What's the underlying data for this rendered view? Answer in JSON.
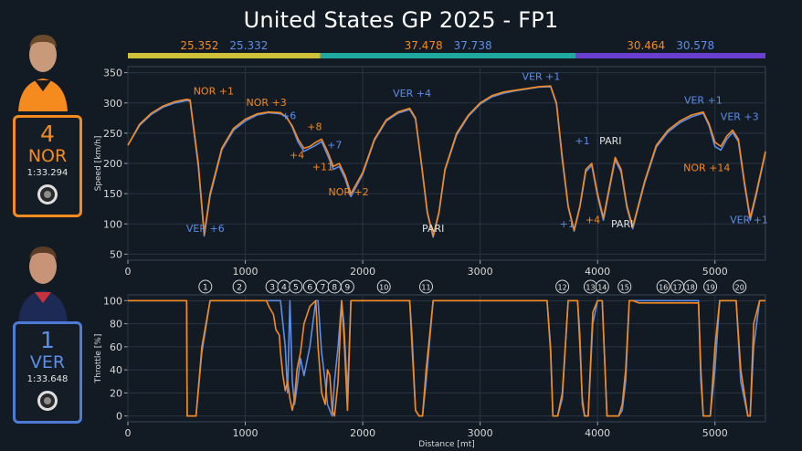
{
  "title": "United States GP 2025 - FP1",
  "colors": {
    "nor": "#f58a1f",
    "ver": "#5d8ee8",
    "sector1": "#cfc03a",
    "sector2": "#1fa9a0",
    "sector3": "#6a3fd0",
    "grid": "#2a3542",
    "background": "#121a24"
  },
  "drivers": {
    "nor": {
      "number": "4",
      "code": "NOR",
      "laptime": "1:33.294",
      "avatar": "driver-photo-nor",
      "tyre": "hard-tyre-icon"
    },
    "ver": {
      "number": "1",
      "code": "VER",
      "laptime": "1:33.648",
      "avatar": "driver-photo-ver",
      "tyre": "hard-tyre-icon"
    }
  },
  "sectors": [
    {
      "range": [
        0,
        1640
      ],
      "nor_time": "25.352",
      "ver_time": "25.332",
      "color": "#cfc03a"
    },
    {
      "range": [
        1640,
        3815
      ],
      "nor_time": "37.478",
      "ver_time": "37.738",
      "color": "#1fa9a0"
    },
    {
      "range": [
        3815,
        5430
      ],
      "nor_time": "30.464",
      "ver_time": "30.578",
      "color": "#6a3fd0"
    }
  ],
  "chart_data": [
    {
      "type": "line",
      "ylabel": "Speed [km/h]",
      "xlim": [
        0,
        5430
      ],
      "ylim": [
        40,
        360
      ],
      "yticks": [
        50,
        100,
        150,
        200,
        250,
        300,
        350
      ],
      "xticks": [
        0,
        1000,
        2000,
        3000,
        4000,
        5000
      ],
      "grid": true,
      "series": [
        {
          "driver": "NOR",
          "x": [
            0,
            100,
            200,
            300,
            400,
            500,
            530,
            600,
            650,
            700,
            800,
            900,
            1000,
            1100,
            1200,
            1300,
            1350,
            1400,
            1450,
            1500,
            1550,
            1600,
            1650,
            1700,
            1750,
            1800,
            1850,
            1900,
            2000,
            2100,
            2200,
            2300,
            2400,
            2450,
            2500,
            2550,
            2600,
            2650,
            2700,
            2800,
            2900,
            3000,
            3100,
            3200,
            3300,
            3400,
            3500,
            3600,
            3650,
            3700,
            3750,
            3800,
            3850,
            3900,
            3950,
            4000,
            4050,
            4100,
            4150,
            4200,
            4250,
            4300,
            4400,
            4500,
            4600,
            4700,
            4800,
            4900,
            4950,
            5000,
            5050,
            5100,
            5150,
            5200,
            5250,
            5300,
            5350,
            5430
          ],
          "y": [
            230,
            265,
            283,
            295,
            302,
            306,
            305,
            200,
            83,
            150,
            225,
            258,
            273,
            282,
            285,
            284,
            276,
            262,
            240,
            225,
            228,
            235,
            240,
            220,
            195,
            200,
            180,
            150,
            185,
            240,
            272,
            285,
            291,
            275,
            200,
            120,
            80,
            120,
            190,
            250,
            280,
            300,
            312,
            318,
            321,
            324,
            327,
            328,
            300,
            210,
            130,
            90,
            130,
            190,
            200,
            150,
            110,
            160,
            210,
            190,
            130,
            95,
            170,
            230,
            255,
            270,
            280,
            285,
            265,
            235,
            228,
            245,
            255,
            240,
            170,
            110,
            150,
            220
          ]
        },
        {
          "driver": "VER",
          "x": [
            0,
            100,
            200,
            300,
            400,
            500,
            530,
            600,
            650,
            700,
            800,
            900,
            1000,
            1100,
            1200,
            1300,
            1350,
            1400,
            1450,
            1500,
            1550,
            1600,
            1650,
            1700,
            1750,
            1800,
            1850,
            1900,
            2000,
            2100,
            2200,
            2300,
            2400,
            2450,
            2500,
            2550,
            2600,
            2650,
            2700,
            2800,
            2900,
            3000,
            3100,
            3200,
            3300,
            3400,
            3500,
            3600,
            3650,
            3700,
            3750,
            3800,
            3850,
            3900,
            3950,
            4000,
            4050,
            4100,
            4150,
            4200,
            4250,
            4300,
            4400,
            4500,
            4600,
            4700,
            4800,
            4900,
            4950,
            5000,
            5050,
            5100,
            5150,
            5200,
            5250,
            5300,
            5350,
            5430
          ],
          "y": [
            230,
            263,
            281,
            293,
            300,
            304,
            303,
            195,
            80,
            146,
            222,
            255,
            270,
            280,
            284,
            282,
            278,
            260,
            235,
            220,
            225,
            230,
            236,
            214,
            190,
            195,
            175,
            145,
            182,
            238,
            270,
            283,
            289,
            273,
            198,
            118,
            78,
            118,
            188,
            247,
            278,
            298,
            310,
            316,
            320,
            323,
            326,
            327,
            298,
            205,
            128,
            88,
            128,
            186,
            197,
            146,
            106,
            156,
            206,
            186,
            127,
            92,
            167,
            227,
            252,
            267,
            277,
            283,
            262,
            228,
            222,
            240,
            251,
            236,
            166,
            106,
            146,
            218
          ]
        }
      ],
      "annotations": [
        {
          "text": "NOR +1",
          "x": 730,
          "y": 314,
          "driver": "NOR"
        },
        {
          "text": "VER +6",
          "x": 660,
          "y": 87,
          "driver": "VER"
        },
        {
          "text": "NOR +3",
          "x": 1180,
          "y": 295,
          "driver": "NOR"
        },
        {
          "text": "+6",
          "x": 1370,
          "y": 273,
          "driver": "VER"
        },
        {
          "text": "+8",
          "x": 1590,
          "y": 255,
          "driver": "NOR"
        },
        {
          "text": "+4",
          "x": 1440,
          "y": 208,
          "driver": "NOR"
        },
        {
          "text": "+7",
          "x": 1760,
          "y": 225,
          "driver": "VER"
        },
        {
          "text": "+11",
          "x": 1660,
          "y": 189,
          "driver": "NOR"
        },
        {
          "text": "NOR +2",
          "x": 1880,
          "y": 147,
          "driver": "NOR"
        },
        {
          "text": "VER +4",
          "x": 2420,
          "y": 310,
          "driver": "VER"
        },
        {
          "text": "PARI",
          "x": 2600,
          "y": 87,
          "driver": ""
        },
        {
          "text": "VER +1",
          "x": 3520,
          "y": 338,
          "driver": "VER"
        },
        {
          "text": "+1",
          "x": 3870,
          "y": 232,
          "driver": "VER"
        },
        {
          "text": "+1",
          "x": 3740,
          "y": 94,
          "driver": "VER"
        },
        {
          "text": "+4",
          "x": 3960,
          "y": 101,
          "driver": "NOR"
        },
        {
          "text": "PARI",
          "x": 4110,
          "y": 232,
          "driver": ""
        },
        {
          "text": "PARI",
          "x": 4210,
          "y": 94,
          "driver": ""
        },
        {
          "text": "VER +1",
          "x": 4900,
          "y": 299,
          "driver": "VER"
        },
        {
          "text": "VER +3",
          "x": 5210,
          "y": 272,
          "driver": "VER"
        },
        {
          "text": "NOR +14",
          "x": 4930,
          "y": 187,
          "driver": "NOR"
        },
        {
          "text": "VER +1",
          "x": 5290,
          "y": 101,
          "driver": "VER"
        }
      ]
    },
    {
      "type": "line",
      "ylabel": "Throttle [%]",
      "xlabel": "Distance [mt]",
      "xlim": [
        0,
        5430
      ],
      "ylim": [
        -5,
        105
      ],
      "yticks": [
        0,
        20,
        40,
        60,
        80,
        100
      ],
      "xticks": [
        0,
        1000,
        2000,
        3000,
        4000,
        5000
      ],
      "grid": true,
      "corners": [
        {
          "label": "1",
          "x": 660
        },
        {
          "label": "2",
          "x": 950
        },
        {
          "label": "3",
          "x": 1230
        },
        {
          "label": "4",
          "x": 1330
        },
        {
          "label": "5",
          "x": 1430
        },
        {
          "label": "6",
          "x": 1550
        },
        {
          "label": "7",
          "x": 1660
        },
        {
          "label": "8",
          "x": 1760
        },
        {
          "label": "9",
          "x": 1870
        },
        {
          "label": "10",
          "x": 2180
        },
        {
          "label": "11",
          "x": 2540
        },
        {
          "label": "12",
          "x": 3700
        },
        {
          "label": "13",
          "x": 3940
        },
        {
          "label": "14",
          "x": 4040
        },
        {
          "label": "15",
          "x": 4230
        },
        {
          "label": "16",
          "x": 4560
        },
        {
          "label": "17",
          "x": 4680
        },
        {
          "label": "18",
          "x": 4790
        },
        {
          "label": "19",
          "x": 4960
        },
        {
          "label": "20",
          "x": 5210
        }
      ],
      "series": [
        {
          "driver": "NOR",
          "x": [
            0,
            500,
            505,
            525,
            580,
            630,
            700,
            1180,
            1200,
            1240,
            1260,
            1290,
            1300,
            1320,
            1340,
            1360,
            1380,
            1400,
            1420,
            1440,
            1470,
            1500,
            1550,
            1600,
            1620,
            1650,
            1680,
            1700,
            1720,
            1740,
            1760,
            1790,
            1820,
            1840,
            1870,
            1900,
            2400,
            2420,
            2450,
            2480,
            2510,
            2540,
            2600,
            3570,
            3600,
            3620,
            3660,
            3700,
            3750,
            3830,
            3850,
            3870,
            3890,
            3920,
            3960,
            4000,
            4040,
            4080,
            4130,
            4180,
            4210,
            4240,
            4270,
            4300,
            4350,
            4700,
            4860,
            4880,
            4900,
            4920,
            4960,
            5000,
            5040,
            5100,
            5180,
            5220,
            5280,
            5300,
            5330,
            5380,
            5430
          ],
          "y": [
            100,
            100,
            0,
            0,
            0,
            60,
            100,
            100,
            95,
            88,
            75,
            70,
            55,
            35,
            22,
            30,
            15,
            5,
            15,
            40,
            55,
            80,
            95,
            100,
            60,
            20,
            10,
            40,
            35,
            5,
            0,
            30,
            100,
            70,
            5,
            100,
            100,
            60,
            5,
            0,
            0,
            40,
            100,
            100,
            55,
            0,
            0,
            20,
            100,
            100,
            60,
            15,
            0,
            0,
            90,
            100,
            100,
            0,
            0,
            0,
            10,
            40,
            100,
            100,
            98,
            98,
            98,
            40,
            0,
            0,
            0,
            60,
            100,
            100,
            100,
            40,
            0,
            0,
            80,
            100,
            100
          ]
        },
        {
          "driver": "VER",
          "x": [
            0,
            500,
            505,
            525,
            580,
            630,
            700,
            1180,
            1200,
            1240,
            1260,
            1290,
            1300,
            1320,
            1340,
            1360,
            1380,
            1400,
            1420,
            1440,
            1470,
            1500,
            1550,
            1600,
            1620,
            1650,
            1680,
            1700,
            1720,
            1740,
            1760,
            1790,
            1820,
            1840,
            1870,
            1900,
            2400,
            2420,
            2450,
            2480,
            2510,
            2540,
            2600,
            3570,
            3600,
            3620,
            3660,
            3700,
            3750,
            3830,
            3850,
            3870,
            3890,
            3920,
            3960,
            4000,
            4040,
            4080,
            4130,
            4180,
            4210,
            4240,
            4270,
            4300,
            4350,
            4700,
            4860,
            4880,
            4900,
            4920,
            4960,
            5000,
            5040,
            5100,
            5180,
            5220,
            5280,
            5300,
            5330,
            5380,
            5430
          ],
          "y": [
            100,
            100,
            0,
            0,
            0,
            55,
            100,
            100,
            100,
            100,
            100,
            100,
            100,
            80,
            60,
            20,
            100,
            30,
            10,
            25,
            50,
            35,
            60,
            100,
            100,
            55,
            30,
            10,
            5,
            0,
            30,
            60,
            100,
            80,
            20,
            100,
            100,
            70,
            5,
            0,
            0,
            30,
            100,
            100,
            60,
            0,
            0,
            15,
            100,
            100,
            70,
            10,
            0,
            0,
            80,
            100,
            100,
            0,
            0,
            0,
            5,
            30,
            100,
            100,
            100,
            100,
            100,
            30,
            0,
            0,
            0,
            40,
            100,
            100,
            100,
            30,
            0,
            0,
            60,
            100,
            100
          ]
        }
      ]
    }
  ]
}
